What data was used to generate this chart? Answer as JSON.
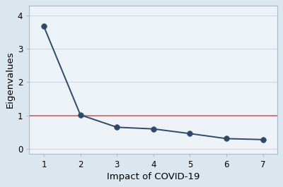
{
  "x": [
    1,
    2,
    3,
    4,
    5,
    6,
    7
  ],
  "y": [
    3.67,
    1.02,
    0.65,
    0.6,
    0.46,
    0.31,
    0.28
  ],
  "line_color": "#2d4a6b",
  "marker_color": "#2d4a6b",
  "hline_y": 1.0,
  "hline_color": "#c87070",
  "xlabel": "Impact of COVID-19",
  "ylabel": "Eigenvalues",
  "xlim": [
    0.6,
    7.4
  ],
  "ylim": [
    -0.15,
    4.3
  ],
  "xticks": [
    1,
    2,
    3,
    4,
    5,
    6,
    7
  ],
  "yticks": [
    0,
    1,
    2,
    3,
    4
  ],
  "outer_bg_color": "#dce6ee",
  "plot_bg_color": "#edf2f6",
  "grid_color": "#c8d8e8",
  "spine_color": "#aabbcc",
  "line_width": 1.4,
  "marker_size": 5.5,
  "xlabel_fontsize": 9.5,
  "ylabel_fontsize": 9.5,
  "tick_fontsize": 8.5
}
